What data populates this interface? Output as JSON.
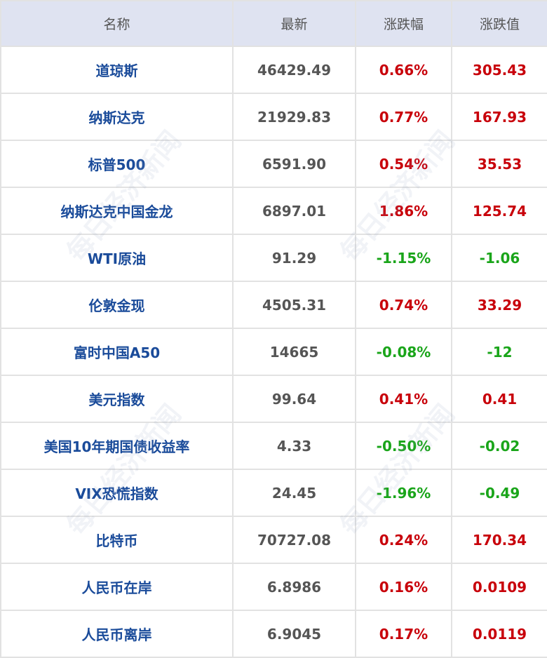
{
  "headers": [
    "名称",
    "最新",
    "涨跌幅",
    "涨跌值"
  ],
  "rows": [
    {
      "name": "道琼斯",
      "latest": "46429.49",
      "pct": "0.66%",
      "chg": "305.43",
      "dir": "up"
    },
    {
      "name": "纳斯达克",
      "latest": "21929.83",
      "pct": "0.77%",
      "chg": "167.93",
      "dir": "up"
    },
    {
      "name": "标普500",
      "latest": "6591.90",
      "pct": "0.54%",
      "chg": "35.53",
      "dir": "up"
    },
    {
      "name": "纳斯达克中国金龙",
      "latest": "6897.01",
      "pct": "1.86%",
      "chg": "125.74",
      "dir": "up"
    },
    {
      "name": "WTI原油",
      "latest": "91.29",
      "pct": "-1.15%",
      "chg": "-1.06",
      "dir": "down"
    },
    {
      "name": "伦敦金现",
      "latest": "4505.31",
      "pct": "0.74%",
      "chg": "33.29",
      "dir": "up"
    },
    {
      "name": "富时中国A50",
      "latest": "14665",
      "pct": "-0.08%",
      "chg": "-12",
      "dir": "down"
    },
    {
      "name": "美元指数",
      "latest": "99.64",
      "pct": "0.41%",
      "chg": "0.41",
      "dir": "up"
    },
    {
      "name": "美国10年期国债收益率",
      "latest": "4.33",
      "pct": "-0.50%",
      "chg": "-0.02",
      "dir": "down"
    },
    {
      "name": "VIX恐慌指数",
      "latest": "24.45",
      "pct": "-1.96%",
      "chg": "-0.49",
      "dir": "down"
    },
    {
      "name": "比特币",
      "latest": "70727.08",
      "pct": "0.24%",
      "chg": "170.34",
      "dir": "up"
    },
    {
      "name": "人民币在岸",
      "latest": "6.8986",
      "pct": "0.16%",
      "chg": "0.0109",
      "dir": "up"
    },
    {
      "name": "人民币离岸",
      "latest": "6.9045",
      "pct": "0.17%",
      "chg": "0.0119",
      "dir": "up"
    }
  ],
  "watermark": "每日经济新闻",
  "colors": {
    "up": "#c8000a",
    "down": "#1aa51a",
    "name": "#1a4b9a",
    "header_bg": "#dfe3f1"
  }
}
